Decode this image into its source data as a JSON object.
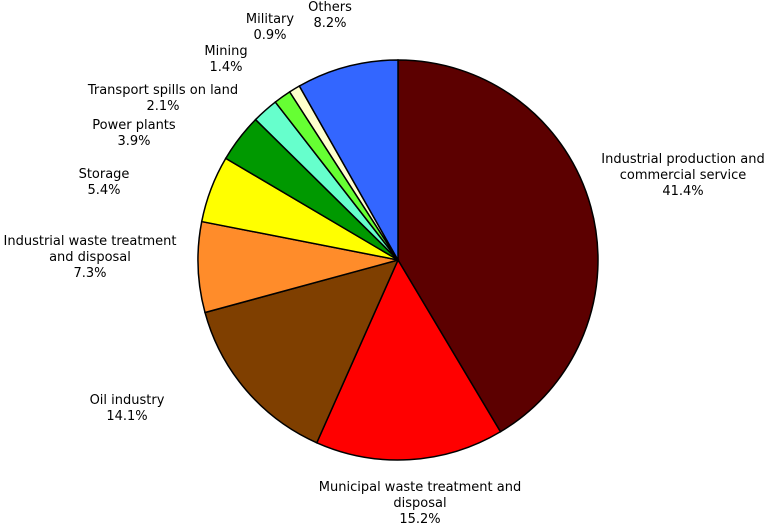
{
  "chart_data": {
    "type": "pie",
    "categories": [
      "Industrial production and commercial service",
      "Municipal waste treatment and disposal",
      "Oil industry",
      "Industrial waste treatment and disposal",
      "Storage",
      "Power plants",
      "Transport spills on land",
      "Mining",
      "Military",
      "Others"
    ],
    "values": [
      41.4,
      15.2,
      14.1,
      7.3,
      5.4,
      3.9,
      2.1,
      1.4,
      0.9,
      8.2
    ],
    "value_labels": [
      "41.4%",
      "15.2%",
      "14.1%",
      "7.3%",
      "5.4%",
      "3.9%",
      "2.1%",
      "1.4%",
      "0.9%",
      "8.2%"
    ],
    "colors": [
      "#5c0000",
      "#ff0000",
      "#7f3f00",
      "#ff8c2a",
      "#ffff00",
      "#009900",
      "#66ffcc",
      "#66ff33",
      "#ffffcc",
      "#3366ff"
    ]
  }
}
